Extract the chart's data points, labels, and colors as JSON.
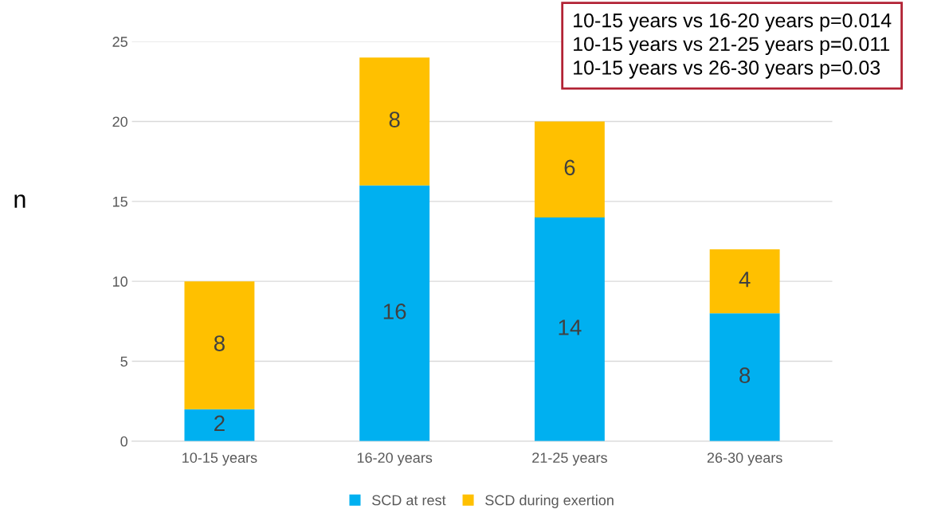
{
  "chart_data": {
    "type": "bar",
    "stacked": true,
    "ylabel": "n",
    "categories": [
      "10-15 years",
      "16-20 years",
      "21-25 years",
      "26-30 years"
    ],
    "series": [
      {
        "name": "SCD at rest",
        "color": "#00b0f0",
        "values": [
          2,
          16,
          14,
          8
        ]
      },
      {
        "name": "SCD during exertion",
        "color": "#ffc000",
        "values": [
          8,
          8,
          6,
          4
        ]
      }
    ],
    "ylim": [
      0,
      25
    ],
    "yticks": [
      0,
      5,
      10,
      15,
      20,
      25
    ],
    "grid": "y",
    "legend": "bottom",
    "data_labels": true,
    "annotations": [
      "10-15 years vs 16-20 years p=0.014",
      "10-15 years vs 21-25 years p=0.011",
      "10-15 years vs 26-30 years p=0.03"
    ]
  }
}
